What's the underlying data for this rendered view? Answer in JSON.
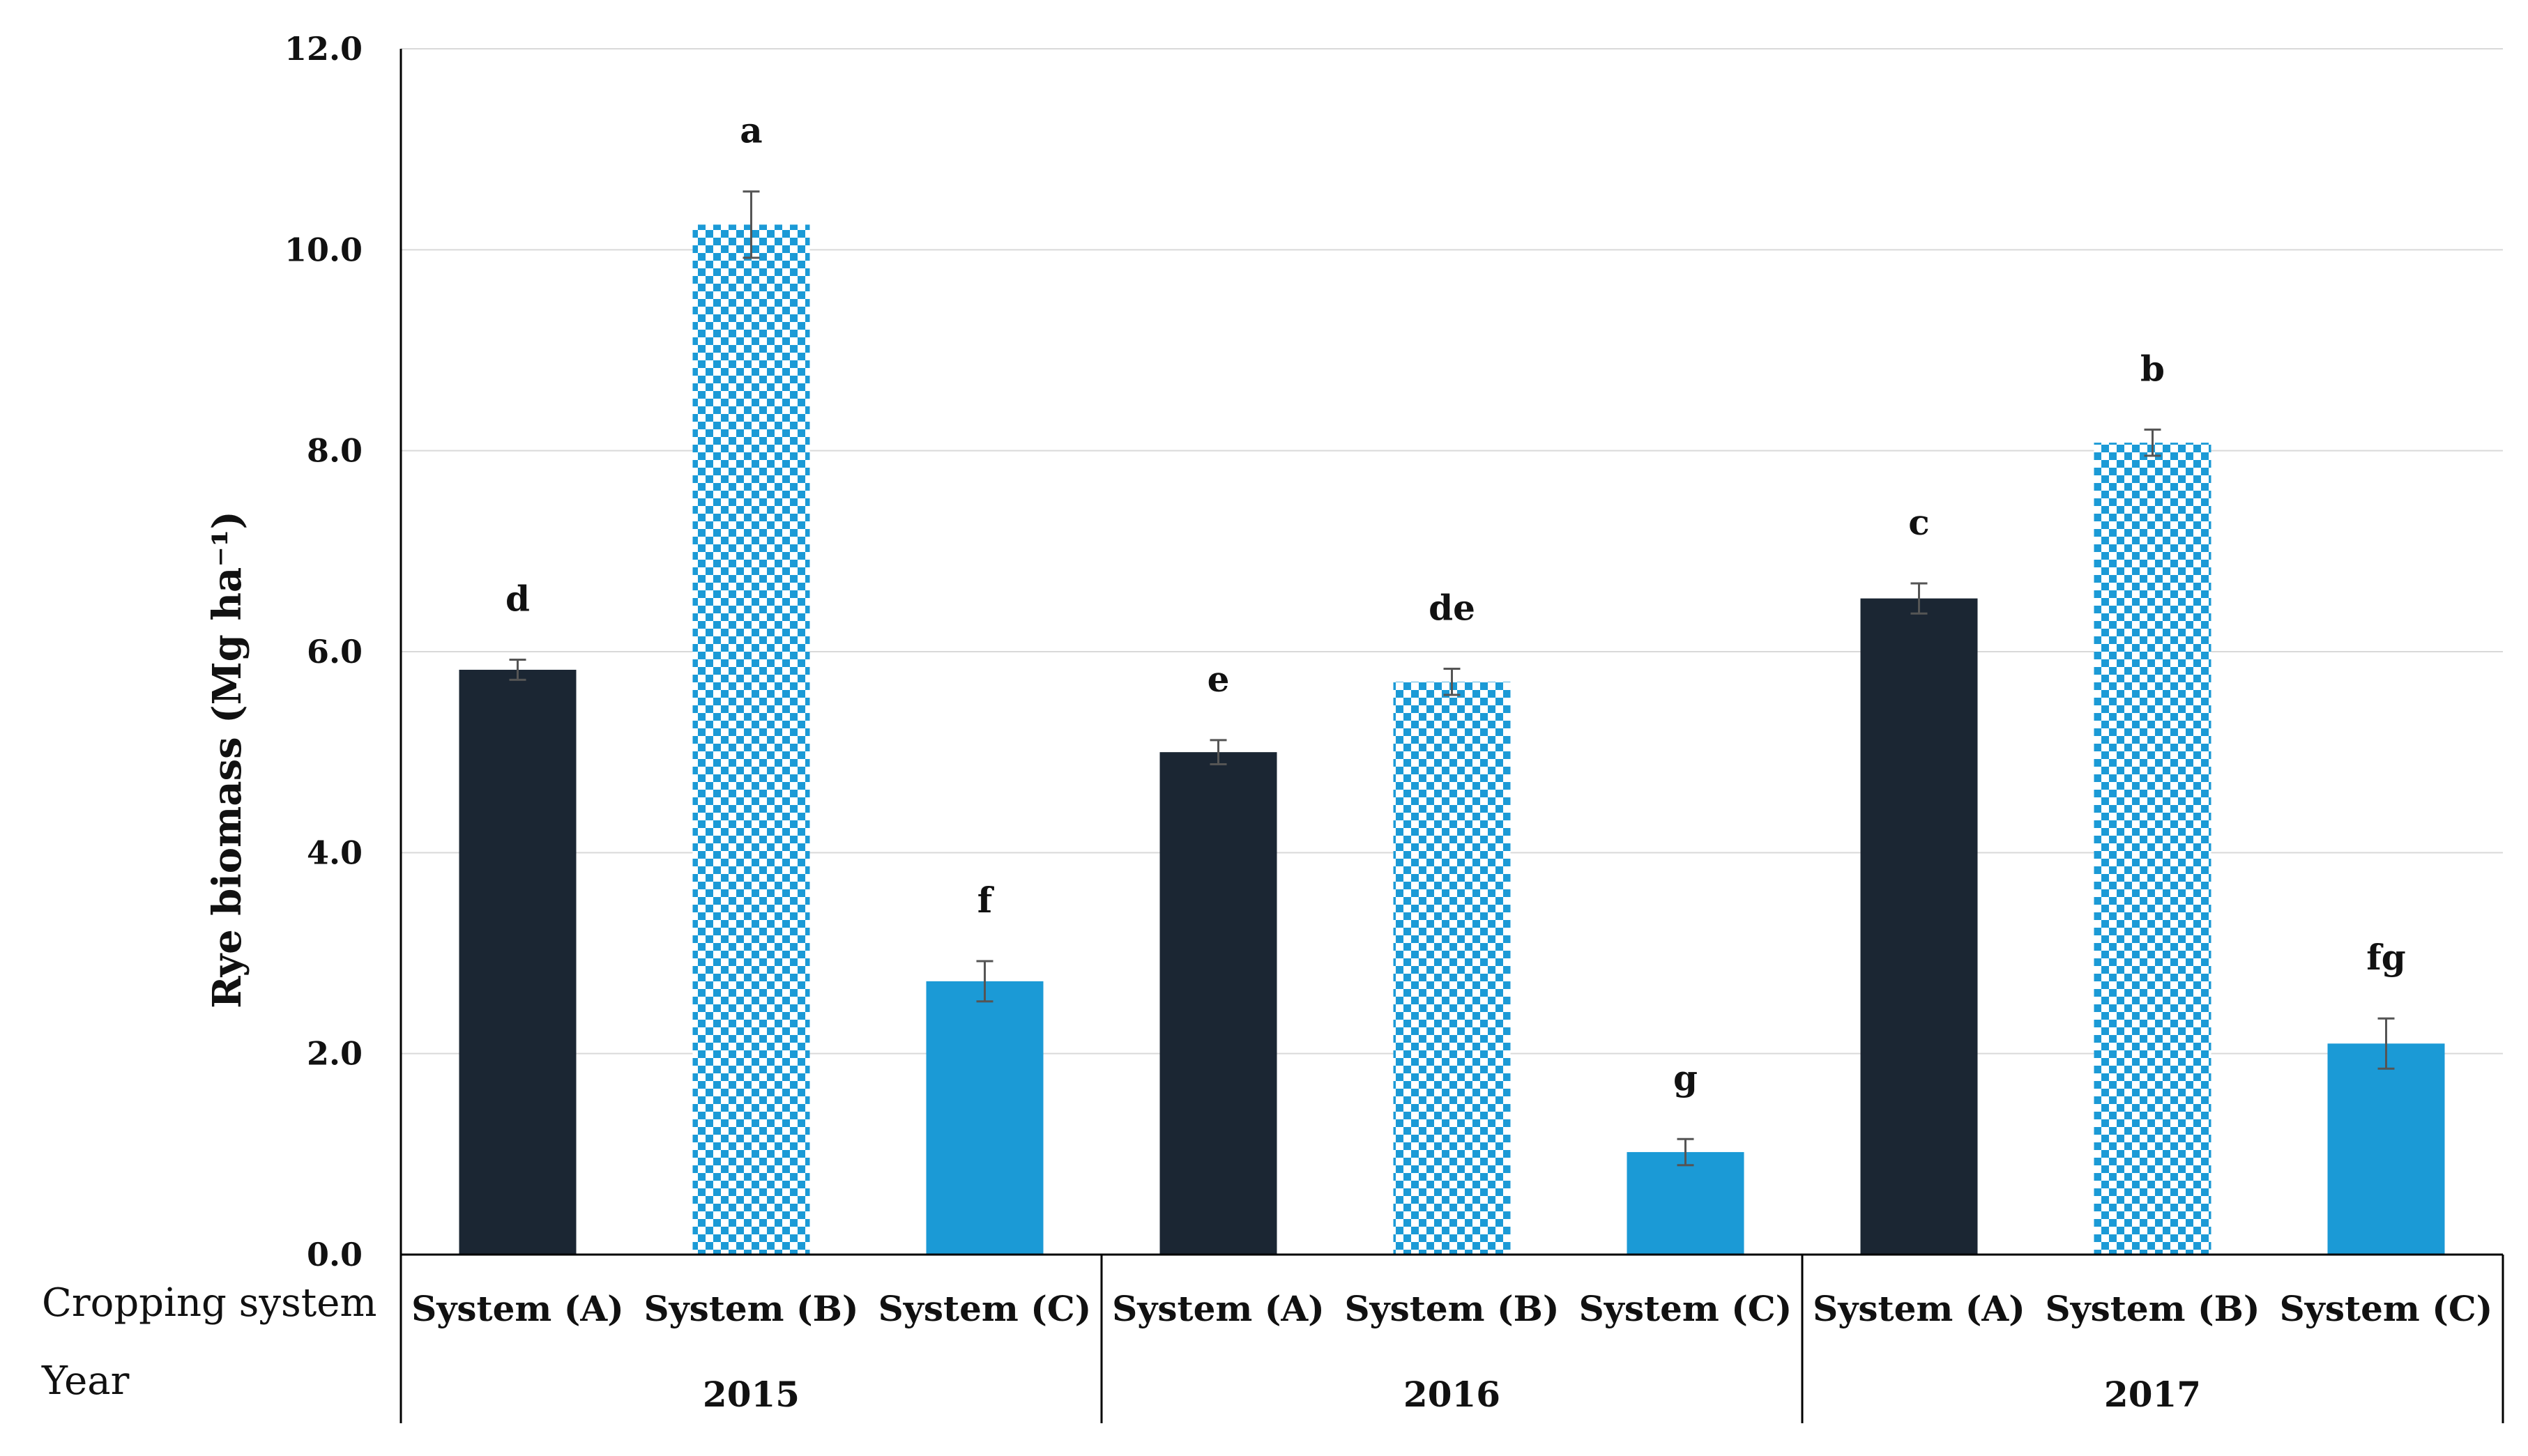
{
  "chart_data": {
    "type": "bar",
    "title": "",
    "ylabel": "Rye biomass (Mg ha⁻¹)",
    "ylim": [
      0,
      12
    ],
    "yticks": [
      "0.0",
      "2.0",
      "4.0",
      "6.0",
      "8.0",
      "10.0",
      "12.0"
    ],
    "grid": true,
    "row_labels": {
      "system": "Cropping system",
      "year": "Year"
    },
    "groups": [
      {
        "year": "2015",
        "bars": [
          {
            "system": "System (A)",
            "value": 5.82,
            "error": 0.1,
            "letter": "d",
            "style": "A"
          },
          {
            "system": "System (B)",
            "value": 10.25,
            "error": 0.33,
            "letter": "a",
            "style": "B"
          },
          {
            "system": "System (C)",
            "value": 2.72,
            "error": 0.2,
            "letter": "f",
            "style": "C"
          }
        ]
      },
      {
        "year": "2016",
        "bars": [
          {
            "system": "System (A)",
            "value": 5.0,
            "error": 0.12,
            "letter": "e",
            "style": "A"
          },
          {
            "system": "System (B)",
            "value": 5.7,
            "error": 0.13,
            "letter": "de",
            "style": "B"
          },
          {
            "system": "System (C)",
            "value": 1.02,
            "error": 0.13,
            "letter": "g",
            "style": "C"
          }
        ]
      },
      {
        "year": "2017",
        "bars": [
          {
            "system": "System (A)",
            "value": 6.53,
            "error": 0.15,
            "letter": "c",
            "style": "A"
          },
          {
            "system": "System (B)",
            "value": 8.08,
            "error": 0.13,
            "letter": "b",
            "style": "B"
          },
          {
            "system": "System (C)",
            "value": 2.1,
            "error": 0.25,
            "letter": "fg",
            "style": "C"
          }
        ]
      }
    ],
    "colors": {
      "A": "#1b2633",
      "B": "#1b9ad6",
      "C": "#1b9ad6",
      "grid": "#d9d9d9",
      "axis": "#000000",
      "error": "#555555"
    }
  }
}
